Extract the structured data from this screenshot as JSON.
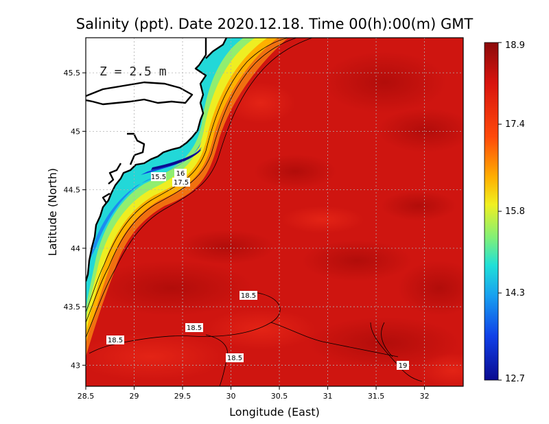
{
  "title": "Salinity (ppt). Date 2020.12.18. Time 00(h):00(m) GMT",
  "depth_label": "Z = 2.5 m",
  "x_axis": {
    "label": "Longitude (East)",
    "ticks": [
      "28.5",
      "29",
      "29.5",
      "30",
      "30.5",
      "31",
      "31.5",
      "32"
    ]
  },
  "y_axis": {
    "label": "Latitude (North)",
    "ticks": [
      "45.5",
      "45",
      "44.5",
      "44",
      "43.5",
      "43"
    ]
  },
  "colorbar": {
    "ticks": [
      "18.9",
      "17.4",
      "15.8",
      "14.3",
      "12.7"
    ],
    "min": 12.7,
    "max": 18.9
  },
  "contour_labels": [
    "15.5",
    "16",
    "17.5",
    "18.5",
    "18.5",
    "18.5",
    "18.5",
    "19"
  ],
  "colors": {
    "sea_main": "#cf1510",
    "sea_dark": "#b30c0a",
    "land": "#ffffff",
    "coast": "#000000"
  },
  "chart_data": {
    "type": "heatmap",
    "title": "Salinity (ppt). Date 2020.12.18. Time 00(h):00(m) GMT",
    "xlabel": "Longitude (East)",
    "ylabel": "Latitude (North)",
    "xlim": [
      28.5,
      32.4
    ],
    "ylim": [
      42.82,
      45.8
    ],
    "value_range": [
      12.7,
      18.9
    ],
    "annotation": "Z = 2.5 m",
    "contours": [
      {
        "value": 15.5,
        "lon": 29.22,
        "lat": 44.6
      },
      {
        "value": 16,
        "lon": 29.45,
        "lat": 44.64
      },
      {
        "value": 17.5,
        "lon": 29.46,
        "lat": 44.57
      },
      {
        "value": 18.5,
        "lon": 30.15,
        "lat": 43.59
      },
      {
        "value": 18.5,
        "lon": 29.6,
        "lat": 43.32
      },
      {
        "value": 18.5,
        "lon": 28.8,
        "lat": 43.2
      },
      {
        "value": 18.5,
        "lon": 30.02,
        "lat": 43.05
      },
      {
        "value": 19,
        "lon": 31.8,
        "lat": 42.98
      }
    ]
  }
}
